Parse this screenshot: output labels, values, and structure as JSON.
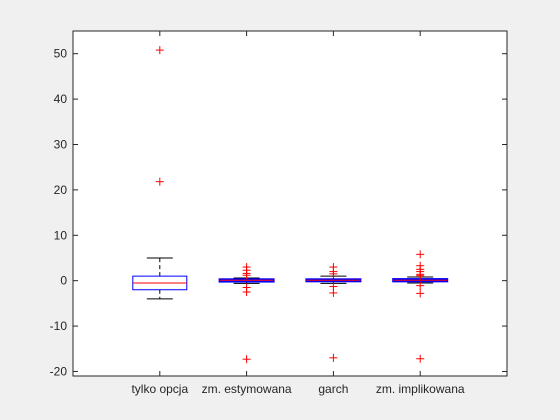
{
  "chart_data": {
    "type": "box",
    "categories": [
      "tylko opcja",
      "zm. estymowana",
      "garch",
      "zm. implikowana"
    ],
    "ylim": [
      -21,
      55
    ],
    "yticks": [
      -20,
      -10,
      0,
      10,
      20,
      30,
      40,
      50
    ],
    "ytick_labels": [
      "-20",
      "-10",
      "0",
      "10",
      "20",
      "30",
      "40",
      "50"
    ],
    "grid": false,
    "boxes": [
      {
        "name": "tylko opcja",
        "whisker_low": -4,
        "q1": -2,
        "median": -0.5,
        "q3": 1,
        "whisker_high": 5,
        "outliers": [
          50.8,
          21.8
        ]
      },
      {
        "name": "zm. estymowana",
        "whisker_low": -0.6,
        "q1": -0.2,
        "median": 0.1,
        "q3": 0.3,
        "whisker_high": 0.6,
        "outliers": [
          3,
          2.3,
          1.6,
          1.2,
          -1.5,
          -2.5,
          -17.3
        ]
      },
      {
        "name": "garch",
        "whisker_low": -0.6,
        "q1": -0.1,
        "median": 0.1,
        "q3": 0.3,
        "whisker_high": 1,
        "outliers": [
          3,
          2,
          1.5,
          -1.3,
          -2.7,
          -17
        ]
      },
      {
        "name": "zm. implikowana",
        "whisker_low": -0.5,
        "q1": -0.15,
        "median": 0.1,
        "q3": 0.35,
        "whisker_high": 0.8,
        "outliers": [
          5.8,
          3.3,
          2.5,
          2,
          1.4,
          1.1,
          -1.1,
          -2.8,
          -17.2
        ]
      }
    ],
    "colors": {
      "box": "#0000ff",
      "median": "#ff0000",
      "whisker": "#000000",
      "outlier": "#ff0000",
      "axes": "#262626",
      "background": "#ffffff"
    }
  }
}
